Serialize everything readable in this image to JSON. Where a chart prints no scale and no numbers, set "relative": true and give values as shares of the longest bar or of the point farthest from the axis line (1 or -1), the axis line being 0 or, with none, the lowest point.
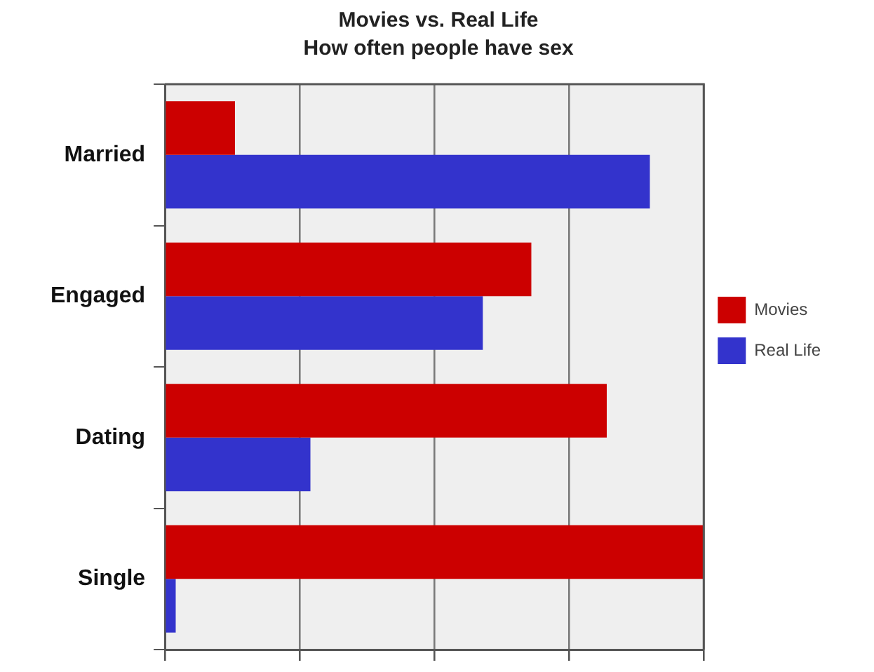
{
  "chart_data": {
    "type": "bar",
    "orientation": "horizontal",
    "relative": true,
    "title": "Movies vs. Real Life",
    "subtitle": "How often people have sex",
    "categories": [
      "Married",
      "Engaged",
      "Dating",
      "Single"
    ],
    "series": [
      {
        "name": "Movies",
        "color": "#cc0000",
        "values": [
          0.13,
          0.68,
          0.82,
          1
        ]
      },
      {
        "name": "Real Life",
        "color": "#3333cc",
        "values": [
          0.9,
          0.59,
          0.27,
          0.02
        ]
      }
    ],
    "grid": "x",
    "legend": "right"
  }
}
